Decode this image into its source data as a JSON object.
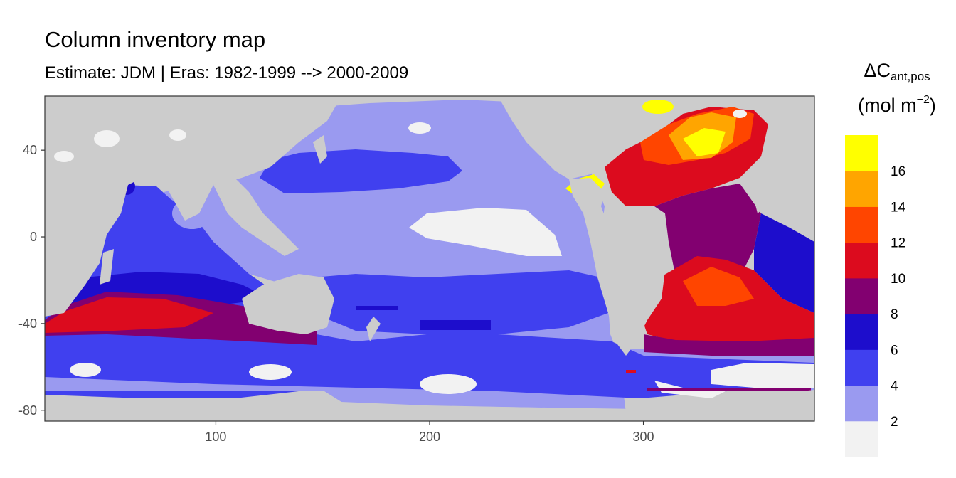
{
  "title": "Column inventory map",
  "subtitle": "Estimate: JDM  | Eras: 1982-1999 --> 2000-2009",
  "legend": {
    "title_main": "ΔC",
    "title_sub": "ant,pos",
    "unit_open": "(mol m",
    "unit_sup": "−2",
    "unit_close": ")",
    "bins": [
      {
        "label": "",
        "color": "#f2f2f2"
      },
      {
        "label": "2",
        "color": "#9a9af0"
      },
      {
        "label": "4",
        "color": "#4040ef"
      },
      {
        "label": "6",
        "color": "#1d0dcc"
      },
      {
        "label": "8",
        "color": "#820070"
      },
      {
        "label": "10",
        "color": "#dc0b1e"
      },
      {
        "label": "12",
        "color": "#ff4500"
      },
      {
        "label": "14",
        "color": "#ffa500"
      },
      {
        "label": "16",
        "color": "#ffff00"
      }
    ]
  },
  "colors": {
    "land": "#cccccc",
    "panel_border": "#333333"
  },
  "chart_data": {
    "type": "heatmap",
    "x_ticks": [
      "100",
      "200",
      "300"
    ],
    "y_ticks": [
      "40",
      "0",
      "-40",
      "-80"
    ],
    "xlim": [
      20,
      380
    ],
    "ylim": [
      -85,
      65
    ],
    "grid": false,
    "legend_position": "right"
  }
}
